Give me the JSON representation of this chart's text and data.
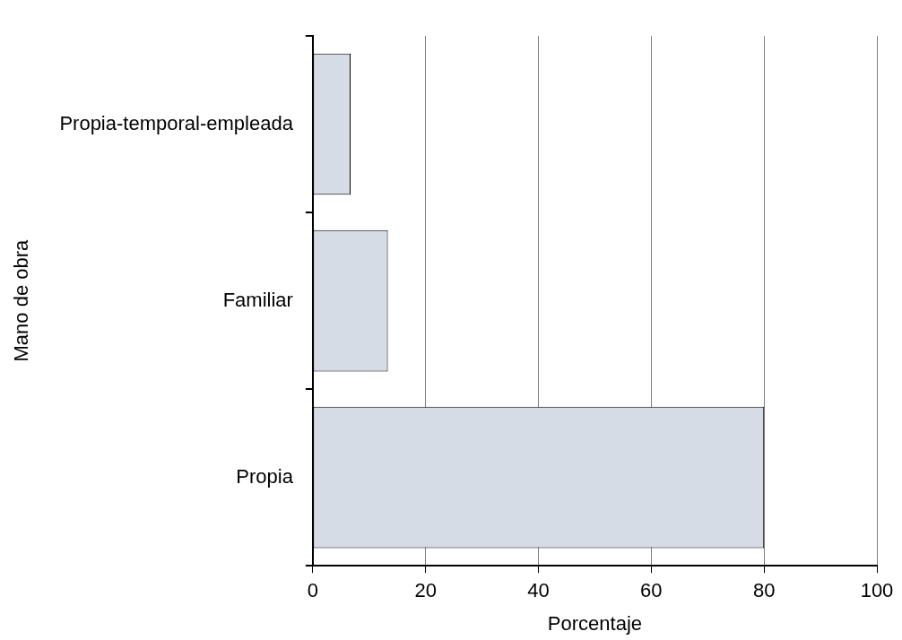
{
  "chart_data": {
    "type": "bar",
    "orientation": "horizontal",
    "xlabel": "Porcentaje",
    "ylabel": "Mano de obra",
    "categories": [
      "Propia-temporal-empleada",
      "Familiar",
      "Propia"
    ],
    "values": [
      6.7,
      13.3,
      80
    ],
    "color": "#d6dce5",
    "xlim": [
      0,
      100
    ],
    "xticks": [
      0,
      20,
      40,
      60,
      80,
      100
    ],
    "grid": "x"
  }
}
